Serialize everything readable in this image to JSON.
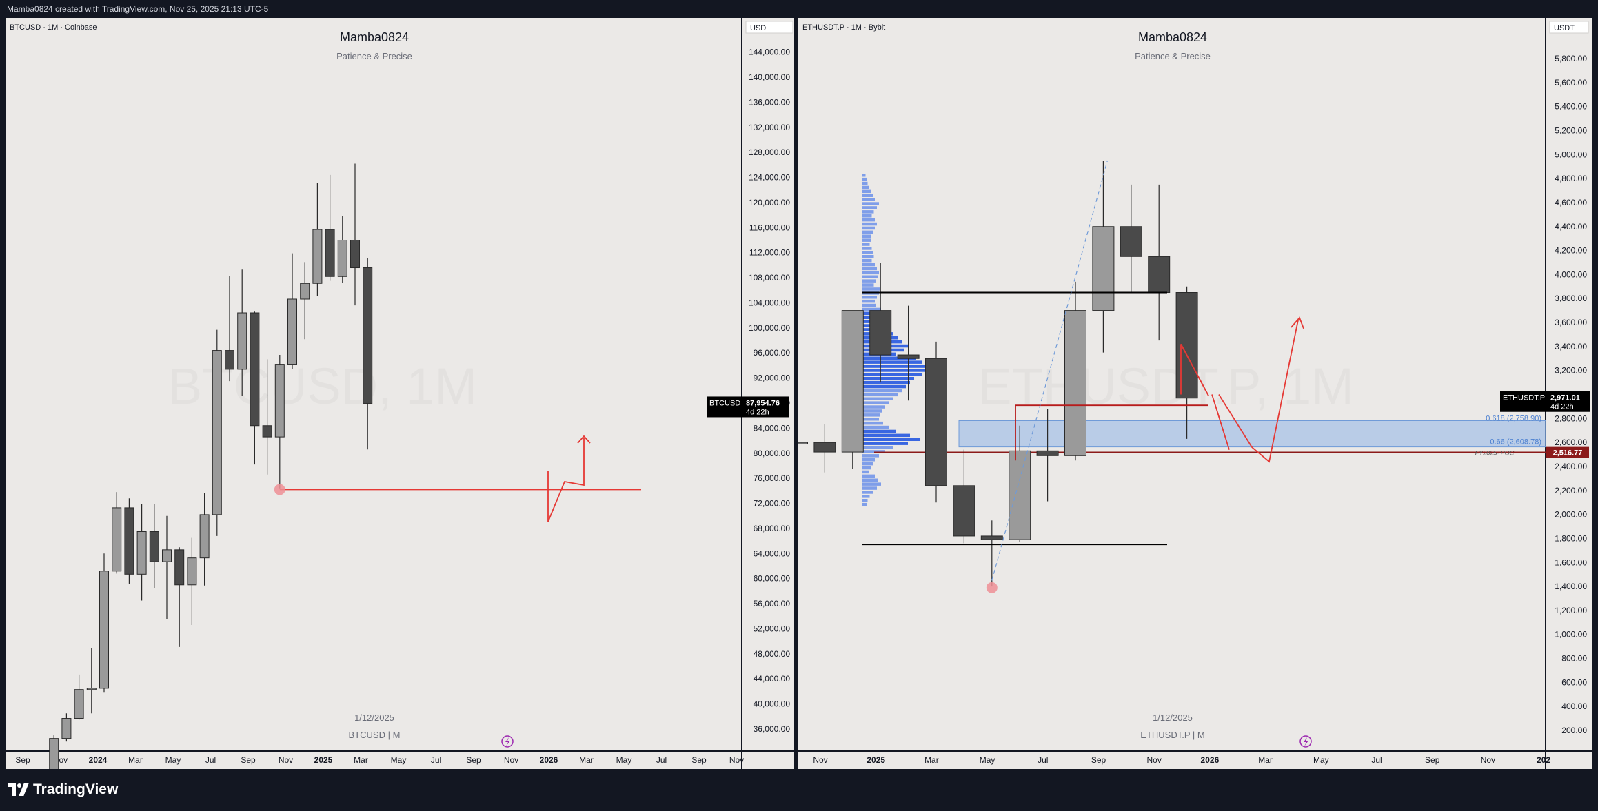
{
  "header": {
    "title": "Mamba0824 created with TradingView.com, Nov 25, 2025 21:13 UTC-5"
  },
  "footer": {
    "brand": "TradingView"
  },
  "charts_common": {
    "author": "Mamba0824",
    "subtitle": "Patience &  Precise"
  },
  "chart_data": [
    {
      "type": "candlestick",
      "symbol_info": "BTCUSD · 1M · Coinbase",
      "title": "Mamba0824",
      "subtitle": "Patience &  Precise",
      "watermark": "BTCUSD, 1M",
      "currency": "USD",
      "date_label": "1/12/2025",
      "footer_label": "BTCUSD | M",
      "y_ticks": [
        36000,
        40000,
        44000,
        48000,
        52000,
        56000,
        60000,
        64000,
        68000,
        72000,
        76000,
        80000,
        84000,
        88000,
        92000,
        96000,
        100000,
        104000,
        108000,
        112000,
        116000,
        120000,
        124000,
        128000,
        132000,
        136000,
        140000,
        144000
      ],
      "x_ticks": [
        "Sep",
        "Nov",
        "2024",
        "Mar",
        "May",
        "Jul",
        "Sep",
        "Nov",
        "2025",
        "Mar",
        "May",
        "Jul",
        "Sep",
        "Nov",
        "2026",
        "Mar",
        "May",
        "Jul",
        "Sep",
        "Nov"
      ],
      "price_label": {
        "symbol": "BTCUSD",
        "value": "87,954.76",
        "countdown": "4d 22h"
      },
      "candles": [
        {
          "month": "2023-09",
          "o": 26000,
          "h": 28000,
          "l": 25000,
          "c": 27000
        },
        {
          "month": "2023-10",
          "o": 27000,
          "h": 35000,
          "l": 26500,
          "c": 34500
        },
        {
          "month": "2023-11",
          "o": 34500,
          "h": 38500,
          "l": 34000,
          "c": 37700
        },
        {
          "month": "2023-12",
          "o": 37700,
          "h": 44700,
          "l": 37500,
          "c": 42300
        },
        {
          "month": "2024-01",
          "o": 42300,
          "h": 48900,
          "l": 38500,
          "c": 42500
        },
        {
          "month": "2024-02",
          "o": 42500,
          "h": 64000,
          "l": 41800,
          "c": 61200
        },
        {
          "month": "2024-03",
          "o": 61200,
          "h": 73800,
          "l": 60800,
          "c": 71300
        },
        {
          "month": "2024-04",
          "o": 71300,
          "h": 72800,
          "l": 59200,
          "c": 60700
        },
        {
          "month": "2024-05",
          "o": 60700,
          "h": 71900,
          "l": 56500,
          "c": 67500
        },
        {
          "month": "2024-06",
          "o": 67500,
          "h": 71900,
          "l": 58500,
          "c": 62700
        },
        {
          "month": "2024-07",
          "o": 62700,
          "h": 70000,
          "l": 53500,
          "c": 64600
        },
        {
          "month": "2024-08",
          "o": 64600,
          "h": 65000,
          "l": 49100,
          "c": 59000
        },
        {
          "month": "2024-09",
          "o": 59000,
          "h": 66500,
          "l": 52600,
          "c": 63300
        },
        {
          "month": "2024-10",
          "o": 63300,
          "h": 73600,
          "l": 58900,
          "c": 70200
        },
        {
          "month": "2024-11",
          "o": 70200,
          "h": 99700,
          "l": 66800,
          "c": 96400
        },
        {
          "month": "2024-12",
          "o": 96400,
          "h": 108300,
          "l": 91500,
          "c": 93400
        },
        {
          "month": "2025-01",
          "o": 93400,
          "h": 109300,
          "l": 89200,
          "c": 102400
        },
        {
          "month": "2025-02",
          "o": 102400,
          "h": 102600,
          "l": 78200,
          "c": 84400
        },
        {
          "month": "2025-03",
          "o": 84400,
          "h": 95000,
          "l": 76600,
          "c": 82600
        },
        {
          "month": "2025-04",
          "o": 82600,
          "h": 95700,
          "l": 74400,
          "c": 94200
        },
        {
          "month": "2025-05",
          "o": 94200,
          "h": 111900,
          "l": 93400,
          "c": 104600
        },
        {
          "month": "2025-06",
          "o": 104600,
          "h": 110500,
          "l": 98200,
          "c": 107100
        },
        {
          "month": "2025-07",
          "o": 107100,
          "h": 123100,
          "l": 105100,
          "c": 115700
        },
        {
          "month": "2025-08",
          "o": 115700,
          "h": 124400,
          "l": 107500,
          "c": 108200
        },
        {
          "month": "2025-09",
          "o": 108200,
          "h": 117900,
          "l": 107200,
          "c": 114000
        },
        {
          "month": "2025-10",
          "o": 114000,
          "h": 126200,
          "l": 103600,
          "c": 109600
        },
        {
          "month": "2025-11",
          "o": 109600,
          "h": 111100,
          "l": 80600,
          "c": 87950
        }
      ]
    },
    {
      "type": "candlestick",
      "symbol_info": "ETHUSDT.P · 1M · Bybit",
      "title": "Mamba0824",
      "subtitle": "Patience &  Precise",
      "watermark": "ETHUSDT.P, 1M",
      "currency": "USDT",
      "date_label": "1/12/2025",
      "footer_label": "ETHUSDT.P | M",
      "y_ticks": [
        200,
        400,
        600,
        800,
        1000,
        1200,
        1400,
        1600,
        1800,
        2000,
        2200,
        2400,
        2600,
        2800,
        3000,
        3200,
        3400,
        3600,
        3800,
        4000,
        4200,
        4400,
        4600,
        4800,
        5000,
        5200,
        5400,
        5600,
        5800
      ],
      "x_ticks": [
        "Nov",
        "2025",
        "Mar",
        "May",
        "Jul",
        "Sep",
        "Nov",
        "2026",
        "Mar",
        "May",
        "Jul",
        "Sep",
        "Nov",
        "202"
      ],
      "price_label": {
        "symbol": "ETHUSDT.P",
        "value": "2,971.01",
        "countdown": "4d 22h"
      },
      "poc_label": "2,516.77",
      "poc_text": "FY2025- POC",
      "fib_labels": [
        "0.618 (2,758.90)",
        "0.66 (2,608.78)"
      ],
      "candles": [
        {
          "month": "2024-09",
          "o": 2600,
          "h": 2700,
          "l": 2150,
          "c": 2600
        },
        {
          "month": "2024-10",
          "o": 2600,
          "h": 2750,
          "l": 2350,
          "c": 2520
        },
        {
          "month": "2024-11",
          "o": 2520,
          "h": 3700,
          "l": 2380,
          "c": 3700
        },
        {
          "month": "2024-12",
          "o": 3700,
          "h": 4100,
          "l": 3100,
          "c": 3330
        },
        {
          "month": "2025-01",
          "o": 3330,
          "h": 3740,
          "l": 2950,
          "c": 3300
        },
        {
          "month": "2025-02",
          "o": 3300,
          "h": 3440,
          "l": 2100,
          "c": 2240
        },
        {
          "month": "2025-03",
          "o": 2240,
          "h": 2540,
          "l": 1760,
          "c": 1820
        },
        {
          "month": "2025-04",
          "o": 1820,
          "h": 1950,
          "l": 1400,
          "c": 1790
        },
        {
          "month": "2025-05",
          "o": 1790,
          "h": 2740,
          "l": 1770,
          "c": 2530
        },
        {
          "month": "2025-06",
          "o": 2530,
          "h": 2880,
          "l": 2110,
          "c": 2490
        },
        {
          "month": "2025-07",
          "o": 2490,
          "h": 3940,
          "l": 2450,
          "c": 3700
        },
        {
          "month": "2025-08",
          "o": 3700,
          "h": 4950,
          "l": 3350,
          "c": 4400
        },
        {
          "month": "2025-09",
          "o": 4400,
          "h": 4750,
          "l": 3850,
          "c": 4150
        },
        {
          "month": "2025-10",
          "o": 4150,
          "h": 4750,
          "l": 3450,
          "c": 3850
        },
        {
          "month": "2025-11",
          "o": 3850,
          "h": 3900,
          "l": 2630,
          "c": 2970
        }
      ]
    }
  ]
}
